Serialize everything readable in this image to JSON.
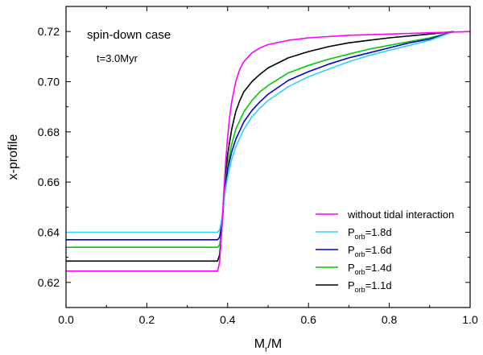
{
  "chart_data": {
    "type": "line",
    "xlabel": {
      "main": "M",
      "sub": "r",
      "tail": "/M"
    },
    "ylabel": "x-profile",
    "xlim": [
      0.0,
      1.0
    ],
    "ylim": [
      0.61,
      0.73
    ],
    "xticks": [
      0.0,
      0.2,
      0.4,
      0.6,
      0.8,
      1.0
    ],
    "xtick_labels": [
      "0.0",
      "0.2",
      "0.4",
      "0.6",
      "0.8",
      "1.0"
    ],
    "yticks": [
      0.62,
      0.64,
      0.66,
      0.68,
      0.7,
      0.72
    ],
    "ytick_labels": [
      "0.62",
      "0.64",
      "0.66",
      "0.68",
      "0.70",
      "0.72"
    ],
    "grid": false,
    "legend_position": "bottom-right",
    "annotations": [
      "spin-down case",
      "t=3.0Myr"
    ],
    "series": [
      {
        "name": "without tidal interaction",
        "legend": {
          "main": "without tidal interaction",
          "sub": "",
          "tail": ""
        },
        "color": "#ff00ff",
        "x": [
          0.0,
          0.37,
          0.375,
          0.38,
          0.385,
          0.39,
          0.395,
          0.4,
          0.405,
          0.41,
          0.42,
          0.43,
          0.44,
          0.46,
          0.48,
          0.5,
          0.55,
          0.6,
          0.7,
          0.8,
          0.9,
          0.96,
          1.0
        ],
        "y": [
          0.6245,
          0.6245,
          0.6245,
          0.628,
          0.64,
          0.655,
          0.668,
          0.678,
          0.686,
          0.692,
          0.7,
          0.705,
          0.708,
          0.7115,
          0.7135,
          0.7148,
          0.7165,
          0.7175,
          0.7185,
          0.719,
          0.7195,
          0.7198,
          0.72
        ]
      },
      {
        "name": "Porb=1.8d",
        "legend": {
          "main": "P",
          "sub": "orb",
          "tail": "=1.8d"
        },
        "color": "#33d1f2",
        "x": [
          0.0,
          0.375,
          0.38,
          0.385,
          0.39,
          0.395,
          0.4,
          0.41,
          0.42,
          0.44,
          0.46,
          0.48,
          0.5,
          0.55,
          0.6,
          0.65,
          0.7,
          0.75,
          0.8,
          0.85,
          0.9,
          0.96
        ],
        "y": [
          0.64,
          0.64,
          0.641,
          0.645,
          0.651,
          0.6575,
          0.662,
          0.669,
          0.674,
          0.681,
          0.686,
          0.6895,
          0.6925,
          0.698,
          0.702,
          0.705,
          0.708,
          0.7105,
          0.7125,
          0.7145,
          0.7165,
          0.72
        ]
      },
      {
        "name": "Porb=1.6d",
        "legend": {
          "main": "P",
          "sub": "orb",
          "tail": "=1.6d"
        },
        "color": "#0000cc",
        "x": [
          0.0,
          0.375,
          0.38,
          0.385,
          0.39,
          0.395,
          0.4,
          0.41,
          0.42,
          0.44,
          0.46,
          0.48,
          0.5,
          0.55,
          0.6,
          0.65,
          0.7,
          0.75,
          0.8,
          0.85,
          0.9,
          0.96
        ],
        "y": [
          0.637,
          0.637,
          0.638,
          0.643,
          0.651,
          0.659,
          0.665,
          0.672,
          0.677,
          0.684,
          0.6885,
          0.692,
          0.695,
          0.7005,
          0.704,
          0.707,
          0.7095,
          0.7115,
          0.7135,
          0.7155,
          0.717,
          0.72
        ]
      },
      {
        "name": "Porb=1.4d",
        "legend": {
          "main": "P",
          "sub": "orb",
          "tail": "=1.4d"
        },
        "color": "#00cc00",
        "x": [
          0.0,
          0.375,
          0.38,
          0.385,
          0.39,
          0.395,
          0.4,
          0.41,
          0.42,
          0.44,
          0.46,
          0.48,
          0.5,
          0.55,
          0.6,
          0.65,
          0.7,
          0.75,
          0.8,
          0.85,
          0.9,
          0.96
        ],
        "y": [
          0.634,
          0.634,
          0.635,
          0.641,
          0.651,
          0.66,
          0.667,
          0.675,
          0.681,
          0.688,
          0.6925,
          0.696,
          0.6985,
          0.7035,
          0.7065,
          0.709,
          0.711,
          0.713,
          0.7145,
          0.716,
          0.7175,
          0.72
        ]
      },
      {
        "name": "Porb=1.1d",
        "legend": {
          "main": "P",
          "sub": "orb",
          "tail": "=1.1d"
        },
        "color": "#000000",
        "x": [
          0.0,
          0.375,
          0.38,
          0.385,
          0.39,
          0.395,
          0.4,
          0.41,
          0.42,
          0.43,
          0.44,
          0.46,
          0.48,
          0.5,
          0.55,
          0.6,
          0.65,
          0.7,
          0.75,
          0.8,
          0.9,
          0.96
        ],
        "y": [
          0.6285,
          0.6285,
          0.631,
          0.64,
          0.652,
          0.663,
          0.671,
          0.681,
          0.688,
          0.6925,
          0.696,
          0.7,
          0.703,
          0.7055,
          0.7095,
          0.712,
          0.714,
          0.7155,
          0.7165,
          0.7175,
          0.719,
          0.72
        ]
      }
    ]
  }
}
